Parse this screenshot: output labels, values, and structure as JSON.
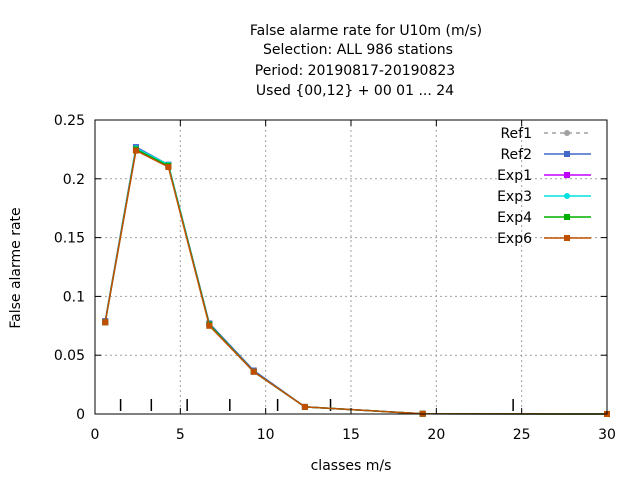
{
  "chart_data": {
    "type": "line",
    "title_lines": [
      "False alarme rate  for U10m (m/s)",
      "Selection: ALL    986 stations",
      "Period: 20190817-20190823",
      "Used {00,12} + 00 01 ... 24"
    ],
    "xlabel": "classes m/s",
    "ylabel": "False alarme rate",
    "xlim": [
      0,
      30
    ],
    "ylim": [
      0,
      0.25
    ],
    "x_ticks": [
      0,
      5,
      10,
      15,
      20,
      25,
      30
    ],
    "x_tick_labels": [
      "0",
      "5",
      "10",
      "15",
      "20",
      "25",
      "30"
    ],
    "y_ticks": [
      0,
      0.05,
      0.1,
      0.15,
      0.2,
      0.25
    ],
    "y_tick_labels": [
      "0",
      "0.05",
      "0.1",
      "0.15",
      "0.2",
      "0.25"
    ],
    "grid": true,
    "legend_position": "top-right",
    "class_boundaries": [
      1.5,
      3.3,
      5.4,
      7.9,
      10.7,
      13.8,
      24.5
    ],
    "x": [
      0.6,
      2.4,
      4.3,
      6.7,
      9.3,
      12.3,
      19.2,
      30.0
    ],
    "series": [
      {
        "name": "Ref1",
        "color": "#a0a0a0",
        "marker": "circle",
        "dashed": true,
        "values": [
          0.079,
          0.227,
          0.212,
          0.077,
          0.037,
          0.006,
          0.0002,
          0.0
        ]
      },
      {
        "name": "Ref2",
        "color": "#4169c8",
        "marker": "square",
        "dashed": false,
        "values": [
          0.079,
          0.227,
          0.212,
          0.077,
          0.037,
          0.006,
          0.0002,
          0.0
        ]
      },
      {
        "name": "Exp1",
        "color": "#c000ff",
        "marker": "square",
        "dashed": false,
        "values": [
          0.078,
          0.225,
          0.211,
          0.076,
          0.036,
          0.006,
          0.0002,
          0.0
        ]
      },
      {
        "name": "Exp3",
        "color": "#00e0e0",
        "marker": "circle",
        "dashed": false,
        "values": [
          0.078,
          0.226,
          0.212,
          0.076,
          0.036,
          0.006,
          0.0002,
          0.0
        ]
      },
      {
        "name": "Exp4",
        "color": "#00b000",
        "marker": "square",
        "dashed": false,
        "values": [
          0.078,
          0.225,
          0.211,
          0.076,
          0.036,
          0.006,
          0.0002,
          0.0
        ]
      },
      {
        "name": "Exp6",
        "color": "#c05000",
        "marker": "square",
        "dashed": false,
        "values": [
          0.078,
          0.224,
          0.21,
          0.075,
          0.036,
          0.006,
          0.0002,
          0.0
        ]
      }
    ]
  }
}
